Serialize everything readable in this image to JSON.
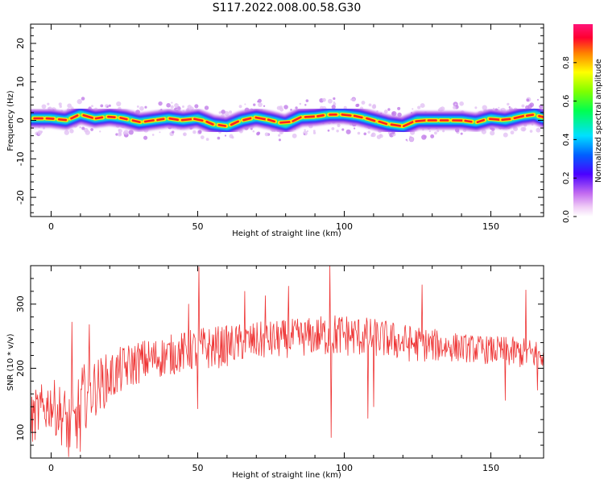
{
  "title": "S117.2022.008.00.58.G30",
  "chart_data": [
    {
      "type": "heatmap",
      "xlabel": "Height of straight line (km)",
      "ylabel": "Frequency (Hz)",
      "xlim": [
        -7,
        168
      ],
      "ylim": [
        -25,
        25
      ],
      "xticks": [
        0,
        50,
        100,
        150
      ],
      "yticks": [
        -20,
        -10,
        0,
        10,
        20
      ],
      "colorbar": {
        "label": "Normalized spectral amplitude",
        "range": [
          0,
          1
        ],
        "ticks": [
          "0.0",
          "0.2",
          "0.4",
          "0.6",
          "0.8"
        ]
      },
      "ridge": {
        "x": [
          -5,
          0,
          5,
          10,
          15,
          20,
          25,
          30,
          35,
          40,
          45,
          50,
          55,
          60,
          65,
          70,
          75,
          80,
          85,
          90,
          95,
          100,
          105,
          110,
          115,
          120,
          125,
          130,
          135,
          140,
          145,
          150,
          155,
          160,
          165,
          168
        ],
        "frequency": [
          0.5,
          0.5,
          0.0,
          1.5,
          0.5,
          1.0,
          0.5,
          -0.5,
          0.0,
          0.5,
          0.0,
          0.5,
          -1.0,
          -1.5,
          0.0,
          0.8,
          0.0,
          -1.0,
          0.8,
          1.0,
          1.5,
          1.5,
          1.0,
          0.0,
          -1.0,
          -1.5,
          0.0,
          0.0,
          0.0,
          0.0,
          -0.5,
          0.5,
          0.0,
          1.0,
          1.5,
          0.5
        ]
      }
    },
    {
      "type": "line",
      "xlabel": "Height of straight line (km)",
      "ylabel": "SNR (10 * v/v)",
      "xlim": [
        -7,
        168
      ],
      "ylim": [
        60,
        360
      ],
      "xticks": [
        0,
        50,
        100,
        150
      ],
      "yticks": [
        100,
        200,
        300
      ],
      "color": "#ee3333",
      "series": [
        {
          "x": [
            -7,
            -5,
            0,
            5,
            8,
            10,
            15,
            20,
            25,
            30,
            35,
            40,
            45,
            50,
            55,
            60,
            65,
            70,
            75,
            80,
            85,
            90,
            95,
            100,
            105,
            110,
            115,
            120,
            125,
            130,
            135,
            140,
            145,
            150,
            155,
            160,
            165,
            168
          ],
          "values": [
            115,
            130,
            145,
            120,
            105,
            150,
            170,
            185,
            200,
            210,
            215,
            220,
            225,
            230,
            232,
            235,
            240,
            242,
            244,
            246,
            248,
            250,
            252,
            252,
            250,
            248,
            245,
            240,
            238,
            236,
            234,
            232,
            230,
            228,
            226,
            224,
            222,
            220
          ],
          "noise": [
            40,
            40,
            40,
            50,
            55,
            55,
            45,
            40,
            36,
            34,
            32,
            32,
            32,
            34,
            34,
            32,
            30,
            30,
            30,
            30,
            30,
            30,
            34,
            34,
            32,
            30,
            30,
            30,
            28,
            26,
            24,
            22,
            22,
            22,
            24,
            24,
            24,
            24
          ],
          "spikes": [
            {
              "x": 7,
              "value": 272
            },
            {
              "x": 13,
              "value": 268
            },
            {
              "x": 50.5,
              "value": 358
            },
            {
              "x": 47,
              "value": 300
            },
            {
              "x": 66,
              "value": 320
            },
            {
              "x": 73,
              "value": 313
            },
            {
              "x": 81,
              "value": 328
            },
            {
              "x": 95,
              "value": 360
            },
            {
              "x": 95.6,
              "value": 92
            },
            {
              "x": 126.5,
              "value": 330
            },
            {
              "x": 162,
              "value": 322
            },
            {
              "x": 6,
              "value": 62
            },
            {
              "x": 10,
              "value": 70
            },
            {
              "x": 13,
              "value": 78
            },
            {
              "x": 50,
              "value": 137
            },
            {
              "x": 108,
              "value": 122
            },
            {
              "x": 110,
              "value": 140
            },
            {
              "x": 155,
              "value": 150
            },
            {
              "x": 166,
              "value": 166
            }
          ]
        }
      ]
    }
  ]
}
